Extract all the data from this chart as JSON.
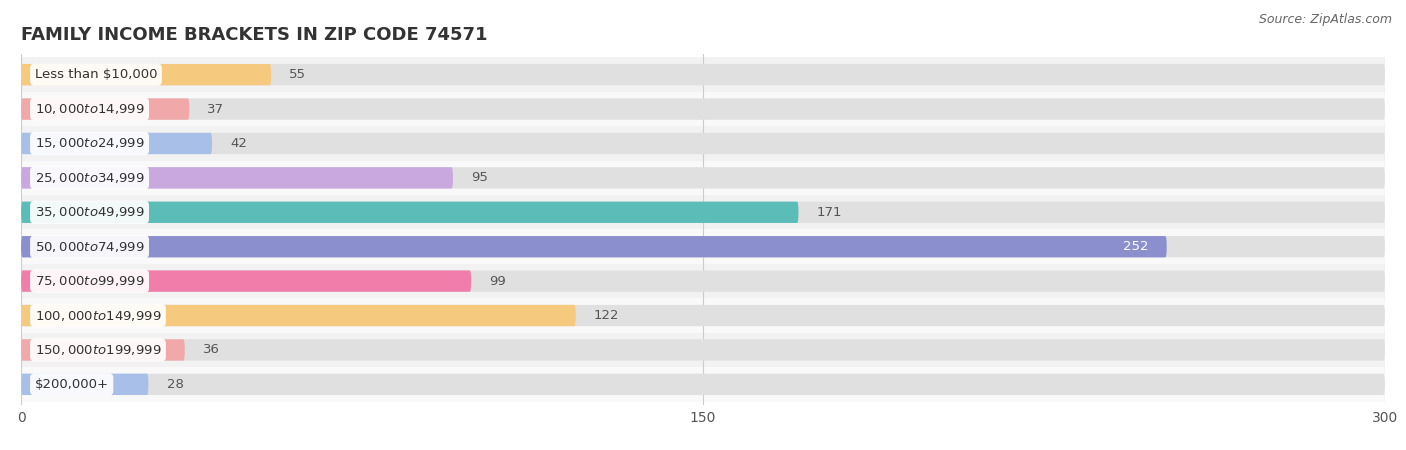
{
  "title": "FAMILY INCOME BRACKETS IN ZIP CODE 74571",
  "source": "Source: ZipAtlas.com",
  "categories": [
    "Less than $10,000",
    "$10,000 to $14,999",
    "$15,000 to $24,999",
    "$25,000 to $34,999",
    "$35,000 to $49,999",
    "$50,000 to $74,999",
    "$75,000 to $99,999",
    "$100,000 to $149,999",
    "$150,000 to $199,999",
    "$200,000+"
  ],
  "values": [
    55,
    37,
    42,
    95,
    171,
    252,
    99,
    122,
    36,
    28
  ],
  "bar_colors": [
    "#f5c97e",
    "#f0a8a8",
    "#a8bfe8",
    "#c9a8e0",
    "#5bbcb8",
    "#8b8fcd",
    "#f07daa",
    "#f5c97e",
    "#f0a8a8",
    "#a8bfe8"
  ],
  "xlim": [
    0,
    300
  ],
  "xticks": [
    0,
    150,
    300
  ],
  "title_fontsize": 13,
  "label_fontsize": 9.5,
  "value_fontsize": 9.5,
  "source_fontsize": 9
}
